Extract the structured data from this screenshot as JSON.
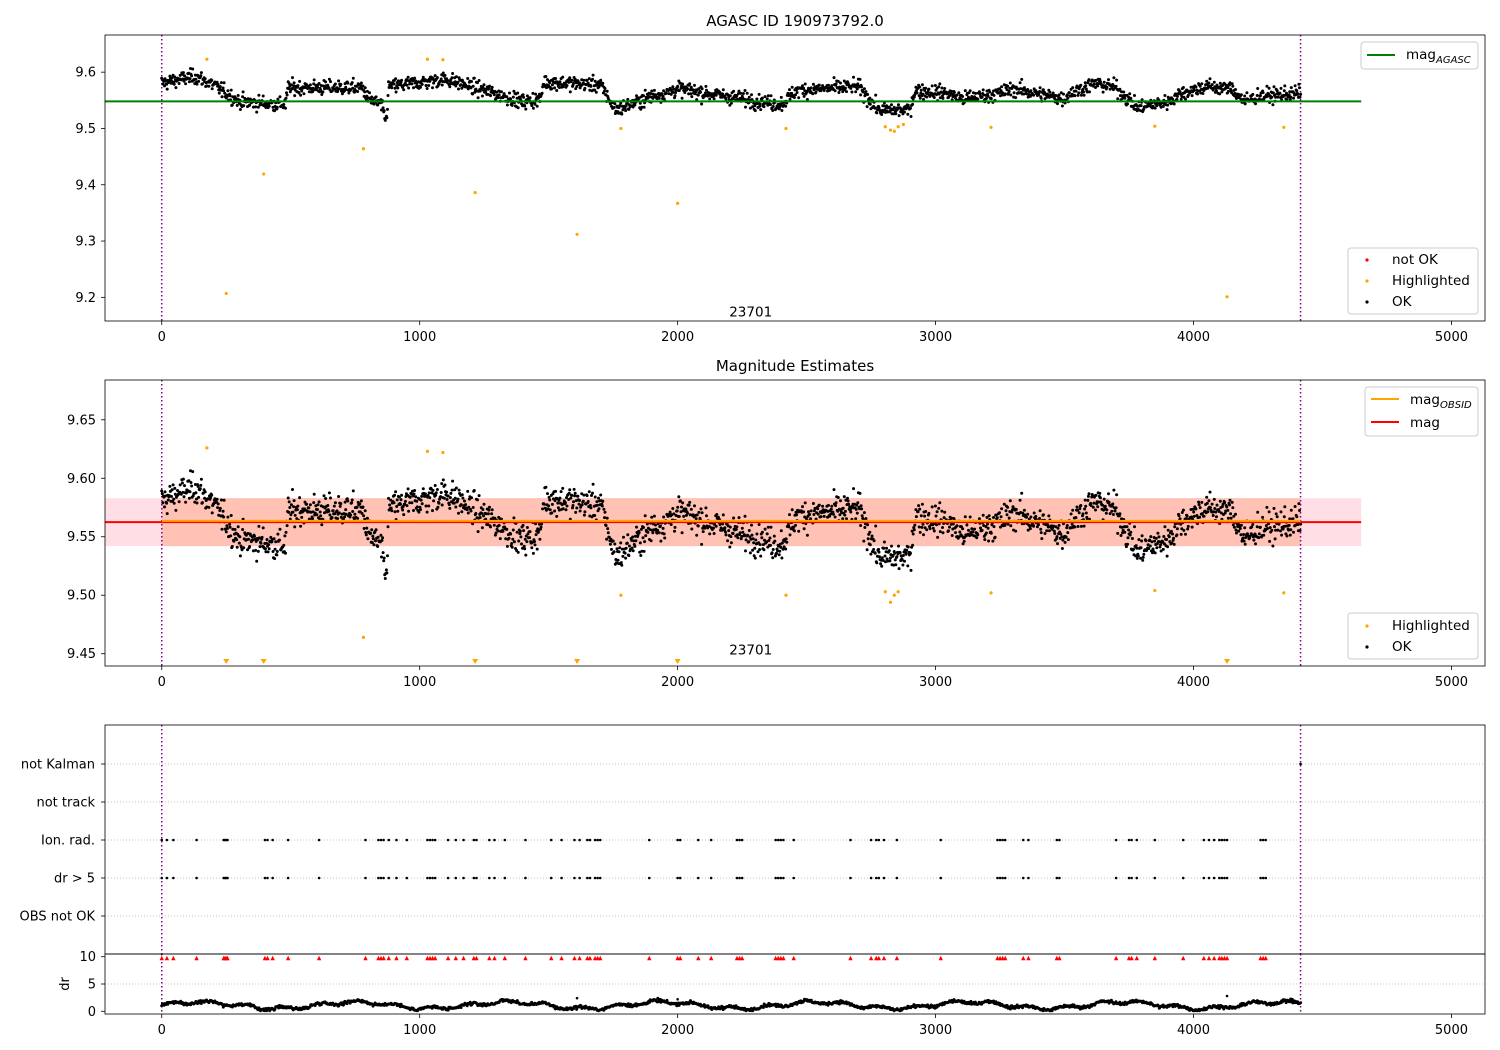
{
  "colors": {
    "ok": "#000000",
    "highlighted": "#ffa500",
    "not_ok": "#ff0000",
    "agasc_line": "#008000",
    "obsid_line": "#ffa500",
    "mag_line": "#ff0000",
    "obsid_band": "#ffa07a",
    "mag_band": "#ffc0cb",
    "obs_boundary": "#800080",
    "flag_grid": "#b0b0b0"
  },
  "chart_data": [
    {
      "id": "agasc",
      "type": "scatter",
      "title": "AGASC ID 190973792.0",
      "xlim": [
        -220,
        5130
      ],
      "ylim": [
        9.158,
        9.666
      ],
      "xticks": [
        0,
        1000,
        2000,
        3000,
        4000,
        5000
      ],
      "yticks": [
        9.2,
        9.3,
        9.4,
        9.5,
        9.6
      ],
      "obs_boundaries": [
        0,
        4415
      ],
      "obsid_label": "23701",
      "obsid_label_pos": [
        2200,
        9.175
      ],
      "mag_agasc": 9.548,
      "hline_xrange": [
        -220,
        4650
      ],
      "legend_lines": [
        {
          "label": "mag",
          "sub": "AGASC",
          "color": "#008000"
        }
      ],
      "legend_points": [
        {
          "label": "not OK",
          "color": "#ff0000"
        },
        {
          "label": "Highlighted",
          "color": "#ffa500"
        },
        {
          "label": "OK",
          "color": "#000000"
        }
      ],
      "highlighted_points": [
        [
          175,
          9.623
        ],
        [
          250,
          9.207
        ],
        [
          395,
          9.419
        ],
        [
          782,
          9.464
        ],
        [
          1030,
          9.623
        ],
        [
          1090,
          9.622
        ],
        [
          1215,
          9.386
        ],
        [
          1610,
          9.312
        ],
        [
          1780,
          9.5
        ],
        [
          2000,
          9.367
        ],
        [
          2420,
          9.5
        ],
        [
          2805,
          9.503
        ],
        [
          2825,
          9.497
        ],
        [
          2840,
          9.495
        ],
        [
          2855,
          9.503
        ],
        [
          2875,
          9.507
        ],
        [
          3215,
          9.502
        ],
        [
          3850,
          9.504
        ],
        [
          4130,
          9.201
        ],
        [
          4350,
          9.502
        ]
      ],
      "series_model": {
        "x_range": [
          0,
          4415
        ],
        "n_points": 2100,
        "baseline": 9.5625,
        "noise": 0.011,
        "segments": [
          [
            0,
            0.018
          ],
          [
            130,
            0.03
          ],
          [
            200,
            0.015
          ],
          [
            300,
            -0.015
          ],
          [
            480,
            -0.02
          ],
          [
            490,
            0.01
          ],
          [
            780,
            0.01
          ],
          [
            800,
            -0.01
          ],
          [
            850,
            -0.02
          ],
          [
            870,
            -0.05
          ],
          [
            880,
            0.012
          ],
          [
            1100,
            0.025
          ],
          [
            1200,
            0.012
          ],
          [
            1400,
            -0.015
          ],
          [
            1470,
            -0.01
          ],
          [
            1480,
            0.02
          ],
          [
            1700,
            0.015
          ],
          [
            1760,
            -0.03
          ],
          [
            1900,
            -0.005
          ],
          [
            1950,
            0.0
          ],
          [
            2000,
            0.008
          ],
          [
            2400,
            -0.02
          ],
          [
            2460,
            0.005
          ],
          [
            2700,
            0.012
          ],
          [
            2780,
            -0.03
          ],
          [
            2900,
            -0.03
          ],
          [
            2920,
            0.005
          ],
          [
            3050,
            0.0
          ],
          [
            3100,
            -0.01
          ],
          [
            3250,
            0.0
          ],
          [
            3300,
            0.008
          ],
          [
            3500,
            -0.01
          ],
          [
            3520,
            0.0
          ],
          [
            3620,
            0.018
          ],
          [
            3700,
            0.01
          ],
          [
            3780,
            -0.025
          ],
          [
            3900,
            -0.015
          ],
          [
            3950,
            0.0
          ],
          [
            4050,
            0.012
          ],
          [
            4150,
            0.008
          ],
          [
            4200,
            -0.015
          ],
          [
            4250,
            -0.005
          ],
          [
            4415,
            0.0
          ]
        ]
      }
    },
    {
      "id": "estimates",
      "type": "scatter",
      "title": "Magnitude Estimates",
      "xlim": [
        -220,
        5130
      ],
      "ylim": [
        9.4395,
        9.684
      ],
      "xticks": [
        0,
        1000,
        2000,
        3000,
        4000,
        5000
      ],
      "yticks": [
        9.45,
        9.5,
        9.55,
        9.6,
        9.65
      ],
      "obs_boundaries": [
        0,
        4415
      ],
      "obsid_label": "23701",
      "obsid_label_pos": [
        2200,
        9.4535
      ],
      "mag": 9.5625,
      "mag_obsid": 9.5625,
      "band": [
        9.542,
        9.583
      ],
      "hline_xrange": [
        -220,
        4650
      ],
      "legend_lines": [
        {
          "label": "mag",
          "sub": "OBSID",
          "color": "#ffa500"
        },
        {
          "label": "mag",
          "sub": "",
          "color": "#ff0000"
        }
      ],
      "legend_points": [
        {
          "label": "Highlighted",
          "color": "#ffa500"
        },
        {
          "label": "OK",
          "color": "#000000"
        }
      ],
      "highlighted_points": [
        [
          175,
          9.626
        ],
        [
          1030,
          9.623
        ],
        [
          1090,
          9.622
        ],
        [
          1780,
          9.5
        ],
        [
          2420,
          9.5
        ],
        [
          2805,
          9.503
        ],
        [
          2825,
          9.494
        ],
        [
          2840,
          9.5
        ],
        [
          2855,
          9.503
        ],
        [
          3215,
          9.502
        ],
        [
          3850,
          9.504
        ],
        [
          4350,
          9.502
        ],
        [
          782,
          9.464
        ]
      ],
      "clipped_markers_x": [
        250,
        395,
        1215,
        1610,
        2000,
        4130
      ]
    },
    {
      "id": "flags",
      "type": "scatter",
      "xlim": [
        -220,
        5130
      ],
      "categories": [
        "OBS not OK",
        "dr > 5",
        "Ion. rad.",
        "not track",
        "not Kalman"
      ],
      "xticks": [],
      "obs_boundaries": [
        0,
        4415
      ],
      "ion_rad_x": [
        0,
        20,
        45,
        135,
        240,
        245,
        250,
        255,
        400,
        410,
        430,
        490,
        610,
        790,
        840,
        850,
        860,
        880,
        910,
        950,
        1030,
        1040,
        1050,
        1060,
        1110,
        1140,
        1170,
        1210,
        1220,
        1270,
        1290,
        1330,
        1410,
        1510,
        1550,
        1600,
        1620,
        1650,
        1660,
        1680,
        1690,
        1700,
        1890,
        2000,
        2010,
        2080,
        2130,
        2230,
        2240,
        2250,
        2380,
        2390,
        2400,
        2410,
        2450,
        2670,
        2750,
        2770,
        2780,
        2800,
        2850,
        3020,
        3240,
        3250,
        3260,
        3270,
        3340,
        3360,
        3470,
        3480,
        3700,
        3750,
        3760,
        3780,
        3850,
        3960,
        4040,
        4060,
        4080,
        4100,
        4110,
        4120,
        4130,
        4260,
        4270,
        4280
      ],
      "not_kalman_x": [
        4415
      ]
    },
    {
      "id": "dr",
      "type": "scatter",
      "ylabel": "dr",
      "xlim": [
        -220,
        5130
      ],
      "ylim": [
        -0.5,
        10.5
      ],
      "xticks": [
        0,
        1000,
        2000,
        3000,
        4000,
        5000
      ],
      "yticks": [
        0,
        5,
        10
      ],
      "obs_boundaries": [
        0,
        4415
      ],
      "clipped_marker_y": 10,
      "outliers": [
        [
          1610,
          2.4
        ],
        [
          2000,
          2.2
        ],
        [
          4130,
          2.8
        ]
      ]
    }
  ]
}
